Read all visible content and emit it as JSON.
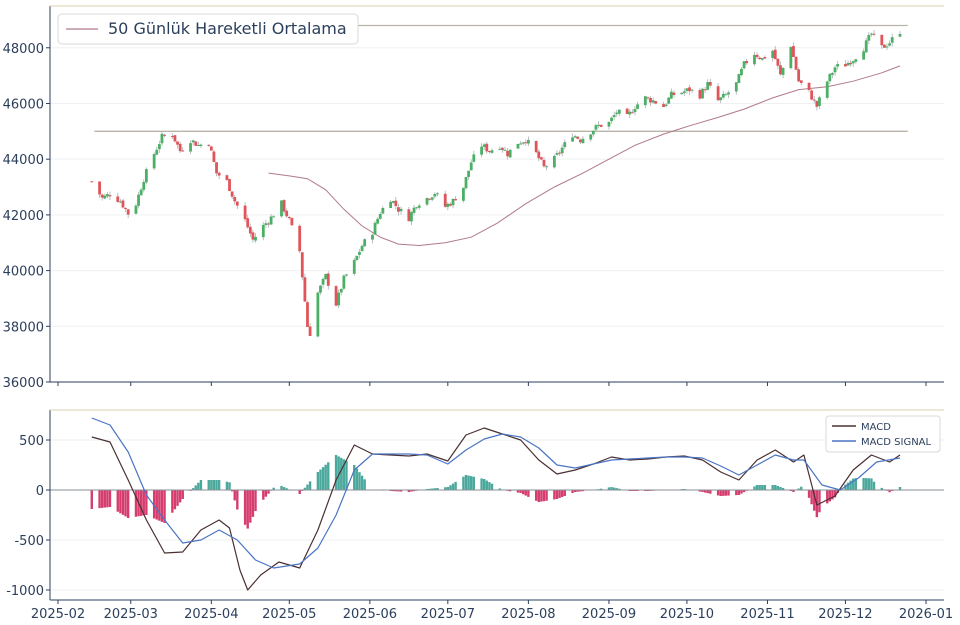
{
  "chart_data": [
    {
      "type": "candlestick",
      "legend": {
        "placement": "top-left",
        "entries": [
          {
            "name": "50 Günlük Hareketli Ortalama",
            "color": "#b07a8a"
          }
        ]
      },
      "ylim": [
        36000,
        49500
      ],
      "yticks": [
        "36000",
        "38000",
        "40000",
        "42000",
        "44000",
        "46000",
        "48000"
      ],
      "grid": true,
      "colors": {
        "up": "#4caf66",
        "down": "#e0555a",
        "wick": "#aab0b6",
        "ma": "#b07a8a",
        "hline": "#b9b3a8"
      },
      "horizontal_lines": [
        48800,
        45000
      ],
      "close_path": [
        [
          "2025-02-14",
          43200
        ],
        [
          "2025-02-18",
          42600
        ],
        [
          "2025-02-21",
          42750
        ],
        [
          "2025-02-25",
          42500
        ],
        [
          "2025-02-28",
          42050
        ],
        [
          "2025-03-03",
          42400
        ],
        [
          "2025-03-06",
          43300
        ],
        [
          "2025-03-10",
          44200
        ],
        [
          "2025-03-13",
          44800
        ],
        [
          "2025-03-17",
          44900
        ],
        [
          "2025-03-20",
          44300
        ],
        [
          "2025-03-24",
          44700
        ],
        [
          "2025-03-27",
          44500
        ],
        [
          "2025-03-31",
          44600
        ],
        [
          "2025-04-03",
          43500
        ],
        [
          "2025-04-07",
          43200
        ],
        [
          "2025-04-10",
          42500
        ],
        [
          "2025-04-14",
          41800
        ],
        [
          "2025-04-17",
          41100
        ],
        [
          "2025-04-21",
          41600
        ],
        [
          "2025-04-24",
          41900
        ],
        [
          "2025-04-28",
          42400
        ],
        [
          "2025-05-01",
          41800
        ],
        [
          "2025-05-05",
          40700
        ],
        [
          "2025-05-08",
          38000
        ],
        [
          "2025-05-10",
          37500
        ],
        [
          "2025-05-12",
          39200
        ],
        [
          "2025-05-15",
          39800
        ],
        [
          "2025-05-19",
          38800
        ],
        [
          "2025-05-22",
          39700
        ],
        [
          "2025-05-26",
          40300
        ],
        [
          "2025-05-29",
          40900
        ],
        [
          "2025-06-02",
          41400
        ],
        [
          "2025-06-05",
          42100
        ],
        [
          "2025-06-09",
          42600
        ],
        [
          "2025-06-12",
          42200
        ],
        [
          "2025-06-16",
          41900
        ],
        [
          "2025-06-19",
          42400
        ],
        [
          "2025-06-23",
          42600
        ],
        [
          "2025-06-26",
          42800
        ],
        [
          "2025-06-30",
          42300
        ],
        [
          "2025-07-03",
          42500
        ],
        [
          "2025-07-07",
          43000
        ],
        [
          "2025-07-10",
          43900
        ],
        [
          "2025-07-14",
          44500
        ],
        [
          "2025-07-17",
          44300
        ],
        [
          "2025-07-21",
          44500
        ],
        [
          "2025-07-24",
          44200
        ],
        [
          "2025-07-28",
          44600
        ],
        [
          "2025-07-31",
          44700
        ],
        [
          "2025-08-04",
          44200
        ],
        [
          "2025-08-07",
          43700
        ],
        [
          "2025-08-11",
          44000
        ],
        [
          "2025-08-14",
          44400
        ],
        [
          "2025-08-18",
          44900
        ],
        [
          "2025-08-21",
          44700
        ],
        [
          "2025-08-25",
          45000
        ],
        [
          "2025-08-28",
          45200
        ],
        [
          "2025-09-01",
          45300
        ],
        [
          "2025-09-04",
          45700
        ],
        [
          "2025-09-08",
          45500
        ],
        [
          "2025-09-11",
          45900
        ],
        [
          "2025-09-15",
          46200
        ],
        [
          "2025-09-18",
          46100
        ],
        [
          "2025-09-22",
          45900
        ],
        [
          "2025-09-25",
          46300
        ],
        [
          "2025-09-29",
          46400
        ],
        [
          "2025-10-02",
          46500
        ],
        [
          "2025-10-06",
          46300
        ],
        [
          "2025-10-09",
          46700
        ],
        [
          "2025-10-13",
          46100
        ],
        [
          "2025-10-16",
          46300
        ],
        [
          "2025-10-20",
          46700
        ],
        [
          "2025-10-23",
          47400
        ],
        [
          "2025-10-27",
          47800
        ],
        [
          "2025-10-30",
          47600
        ],
        [
          "2025-11-03",
          47900
        ],
        [
          "2025-11-06",
          47000
        ],
        [
          "2025-11-10",
          48100
        ],
        [
          "2025-11-13",
          46800
        ],
        [
          "2025-11-17",
          46400
        ],
        [
          "2025-11-20",
          45900
        ],
        [
          "2025-11-24",
          46800
        ],
        [
          "2025-11-27",
          47300
        ],
        [
          "2025-12-01",
          47400
        ],
        [
          "2025-12-04",
          47600
        ],
        [
          "2025-12-08",
          48000
        ],
        [
          "2025-12-11",
          48500
        ],
        [
          "2025-12-15",
          48000
        ],
        [
          "2025-12-18",
          48200
        ],
        [
          "2025-12-22",
          48600
        ]
      ],
      "moving_average": [
        [
          "2025-04-23",
          43500
        ],
        [
          "2025-05-01",
          43400
        ],
        [
          "2025-05-08",
          43300
        ],
        [
          "2025-05-15",
          42900
        ],
        [
          "2025-05-22",
          42200
        ],
        [
          "2025-05-29",
          41600
        ],
        [
          "2025-06-05",
          41200
        ],
        [
          "2025-06-12",
          40950
        ],
        [
          "2025-06-20",
          40900
        ],
        [
          "2025-06-30",
          41000
        ],
        [
          "2025-07-10",
          41200
        ],
        [
          "2025-07-20",
          41700
        ],
        [
          "2025-07-31",
          42400
        ],
        [
          "2025-08-11",
          43000
        ],
        [
          "2025-08-22",
          43500
        ],
        [
          "2025-09-01",
          44000
        ],
        [
          "2025-09-11",
          44500
        ],
        [
          "2025-09-22",
          44900
        ],
        [
          "2025-10-02",
          45200
        ],
        [
          "2025-10-13",
          45500
        ],
        [
          "2025-10-23",
          45800
        ],
        [
          "2025-11-03",
          46200
        ],
        [
          "2025-11-13",
          46500
        ],
        [
          "2025-11-24",
          46600
        ],
        [
          "2025-12-04",
          46800
        ],
        [
          "2025-12-15",
          47100
        ],
        [
          "2025-12-22",
          47350
        ]
      ]
    },
    {
      "type": "line",
      "legend": {
        "placement": "top-right"
      },
      "ylim": [
        -1100,
        800
      ],
      "yticks": [
        "-1000",
        "-500",
        "0",
        "500"
      ],
      "xticks": [
        "2025-02",
        "2025-03",
        "2025-04",
        "2025-05",
        "2025-06",
        "2025-07",
        "2025-08",
        "2025-09",
        "2025-10",
        "2025-11",
        "2025-12",
        "2026-01"
      ],
      "xlim": [
        "2025-02-01",
        "2026-01-01"
      ],
      "grid": true,
      "colors": {
        "hist_pos": "#4aa89c",
        "hist_neg": "#d63d6f",
        "top_rule": "#d9cfae"
      },
      "series": [
        {
          "name": "MACD",
          "color": "#4a3030",
          "points": [
            [
              "2025-02-14",
              530
            ],
            [
              "2025-02-21",
              480
            ],
            [
              "2025-02-28",
              100
            ],
            [
              "2025-03-07",
              -300
            ],
            [
              "2025-03-14",
              -630
            ],
            [
              "2025-03-21",
              -620
            ],
            [
              "2025-03-28",
              -400
            ],
            [
              "2025-04-04",
              -300
            ],
            [
              "2025-04-08",
              -380
            ],
            [
              "2025-04-12",
              -800
            ],
            [
              "2025-04-15",
              -1000
            ],
            [
              "2025-04-20",
              -850
            ],
            [
              "2025-04-27",
              -720
            ],
            [
              "2025-05-05",
              -780
            ],
            [
              "2025-05-12",
              -400
            ],
            [
              "2025-05-19",
              100
            ],
            [
              "2025-05-26",
              450
            ],
            [
              "2025-06-02",
              360
            ],
            [
              "2025-06-09",
              350
            ],
            [
              "2025-06-16",
              340
            ],
            [
              "2025-06-23",
              360
            ],
            [
              "2025-07-01",
              290
            ],
            [
              "2025-07-08",
              550
            ],
            [
              "2025-07-15",
              620
            ],
            [
              "2025-07-22",
              560
            ],
            [
              "2025-07-29",
              500
            ],
            [
              "2025-08-05",
              300
            ],
            [
              "2025-08-12",
              160
            ],
            [
              "2025-08-19",
              200
            ],
            [
              "2025-08-26",
              260
            ],
            [
              "2025-09-02",
              330
            ],
            [
              "2025-09-09",
              300
            ],
            [
              "2025-09-16",
              310
            ],
            [
              "2025-09-23",
              330
            ],
            [
              "2025-09-30",
              340
            ],
            [
              "2025-10-07",
              300
            ],
            [
              "2025-10-14",
              180
            ],
            [
              "2025-10-21",
              100
            ],
            [
              "2025-10-28",
              300
            ],
            [
              "2025-11-04",
              400
            ],
            [
              "2025-11-11",
              280
            ],
            [
              "2025-11-15",
              350
            ],
            [
              "2025-11-20",
              -150
            ],
            [
              "2025-11-27",
              -60
            ],
            [
              "2025-12-04",
              200
            ],
            [
              "2025-12-11",
              350
            ],
            [
              "2025-12-18",
              280
            ],
            [
              "2025-12-22",
              350
            ]
          ]
        },
        {
          "name": "MACD SIGNAL",
          "color": "#4a74c4",
          "points": [
            [
              "2025-02-14",
              720
            ],
            [
              "2025-02-21",
              650
            ],
            [
              "2025-02-28",
              380
            ],
            [
              "2025-03-07",
              -50
            ],
            [
              "2025-03-14",
              -300
            ],
            [
              "2025-03-21",
              -530
            ],
            [
              "2025-03-28",
              -500
            ],
            [
              "2025-04-04",
              -400
            ],
            [
              "2025-04-11",
              -500
            ],
            [
              "2025-04-18",
              -700
            ],
            [
              "2025-04-25",
              -780
            ],
            [
              "2025-05-05",
              -740
            ],
            [
              "2025-05-12",
              -580
            ],
            [
              "2025-05-19",
              -250
            ],
            [
              "2025-05-26",
              200
            ],
            [
              "2025-06-02",
              360
            ],
            [
              "2025-06-09",
              360
            ],
            [
              "2025-06-16",
              360
            ],
            [
              "2025-06-23",
              350
            ],
            [
              "2025-07-01",
              260
            ],
            [
              "2025-07-08",
              400
            ],
            [
              "2025-07-15",
              510
            ],
            [
              "2025-07-22",
              560
            ],
            [
              "2025-07-29",
              530
            ],
            [
              "2025-08-05",
              420
            ],
            [
              "2025-08-12",
              250
            ],
            [
              "2025-08-19",
              220
            ],
            [
              "2025-08-26",
              260
            ],
            [
              "2025-09-02",
              300
            ],
            [
              "2025-09-09",
              310
            ],
            [
              "2025-09-16",
              320
            ],
            [
              "2025-09-23",
              330
            ],
            [
              "2025-09-30",
              330
            ],
            [
              "2025-10-07",
              320
            ],
            [
              "2025-10-14",
              240
            ],
            [
              "2025-10-21",
              150
            ],
            [
              "2025-10-28",
              250
            ],
            [
              "2025-11-04",
              350
            ],
            [
              "2025-11-11",
              300
            ],
            [
              "2025-11-15",
              300
            ],
            [
              "2025-11-22",
              50
            ],
            [
              "2025-11-29",
              0
            ],
            [
              "2025-12-06",
              120
            ],
            [
              "2025-12-13",
              280
            ],
            [
              "2025-12-22",
              320
            ]
          ]
        }
      ]
    }
  ]
}
